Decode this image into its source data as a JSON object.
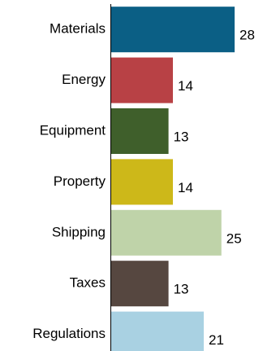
{
  "chart_data": {
    "type": "bar",
    "orientation": "horizontal",
    "categories": [
      "Materials",
      "Energy",
      "Equipment",
      "Property",
      "Shipping",
      "Taxes",
      "Regulations"
    ],
    "values": [
      28,
      14,
      13,
      14,
      25,
      13,
      21
    ],
    "colors": [
      "#0b5f85",
      "#b84145",
      "#3f5f2b",
      "#cdb819",
      "#bfd3a9",
      "#564740",
      "#a9d1e2"
    ],
    "title": "",
    "xlabel": "",
    "ylabel": "",
    "xlim": [
      0,
      31
    ],
    "grid": false,
    "legend": "none",
    "data_labels": true
  }
}
